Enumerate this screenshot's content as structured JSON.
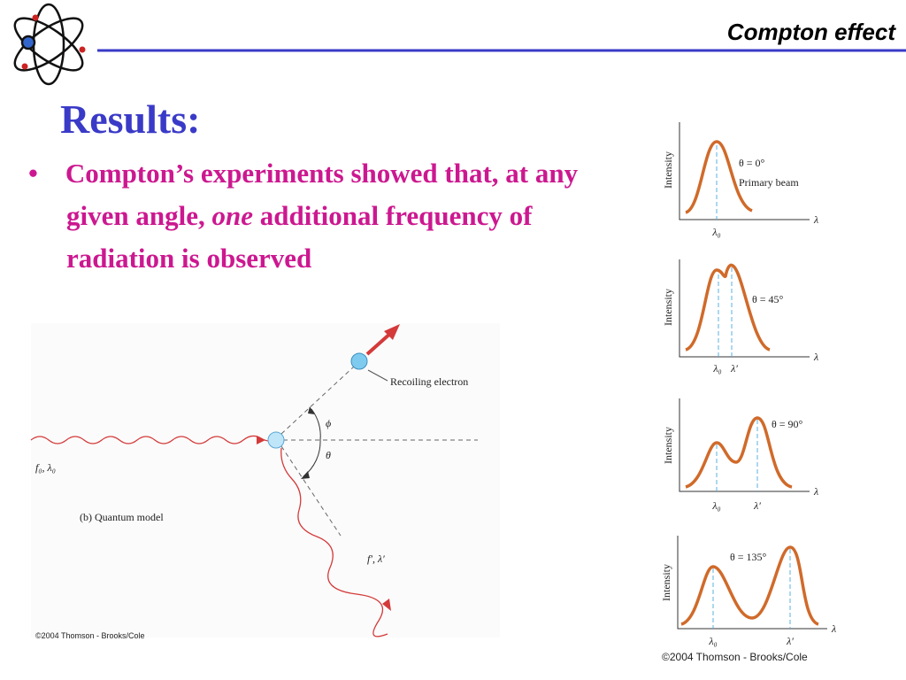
{
  "header": {
    "title": "Compton effect"
  },
  "slide": {
    "heading": "Results:",
    "bullet": {
      "parts": [
        "Compton’s experiments showed that, at any given angle, ",
        "one",
        " additional frequency of radiation is observed"
      ]
    }
  },
  "diagram": {
    "recoil_label": "Recoiling electron",
    "phi": "ϕ",
    "theta": "θ",
    "incident": "f₀, λ₀",
    "model": "(b) Quantum model",
    "scattered": "f′, λ′",
    "credit": "©2004 Thomson - Brooks/Cole"
  },
  "panels": [
    {
      "y_label": "Intensity",
      "angle": "θ = 0°",
      "note": "Primary beam",
      "x_label": "λ",
      "peaks": [
        "λ₀"
      ]
    },
    {
      "y_label": "Intensity",
      "angle": "θ = 45°",
      "x_label": "λ",
      "peaks": [
        "λ₀",
        "λ′"
      ]
    },
    {
      "y_label": "Intensity",
      "angle": "θ = 90°",
      "x_label": "λ",
      "peaks": [
        "λ₀",
        "λ′"
      ]
    },
    {
      "y_label": "Intensity",
      "angle": "θ = 135°",
      "x_label": "λ",
      "peaks": [
        "λ₀",
        "λ′"
      ]
    }
  ],
  "panels_credit": "©2004 Thomson - Brooks/Cole"
}
